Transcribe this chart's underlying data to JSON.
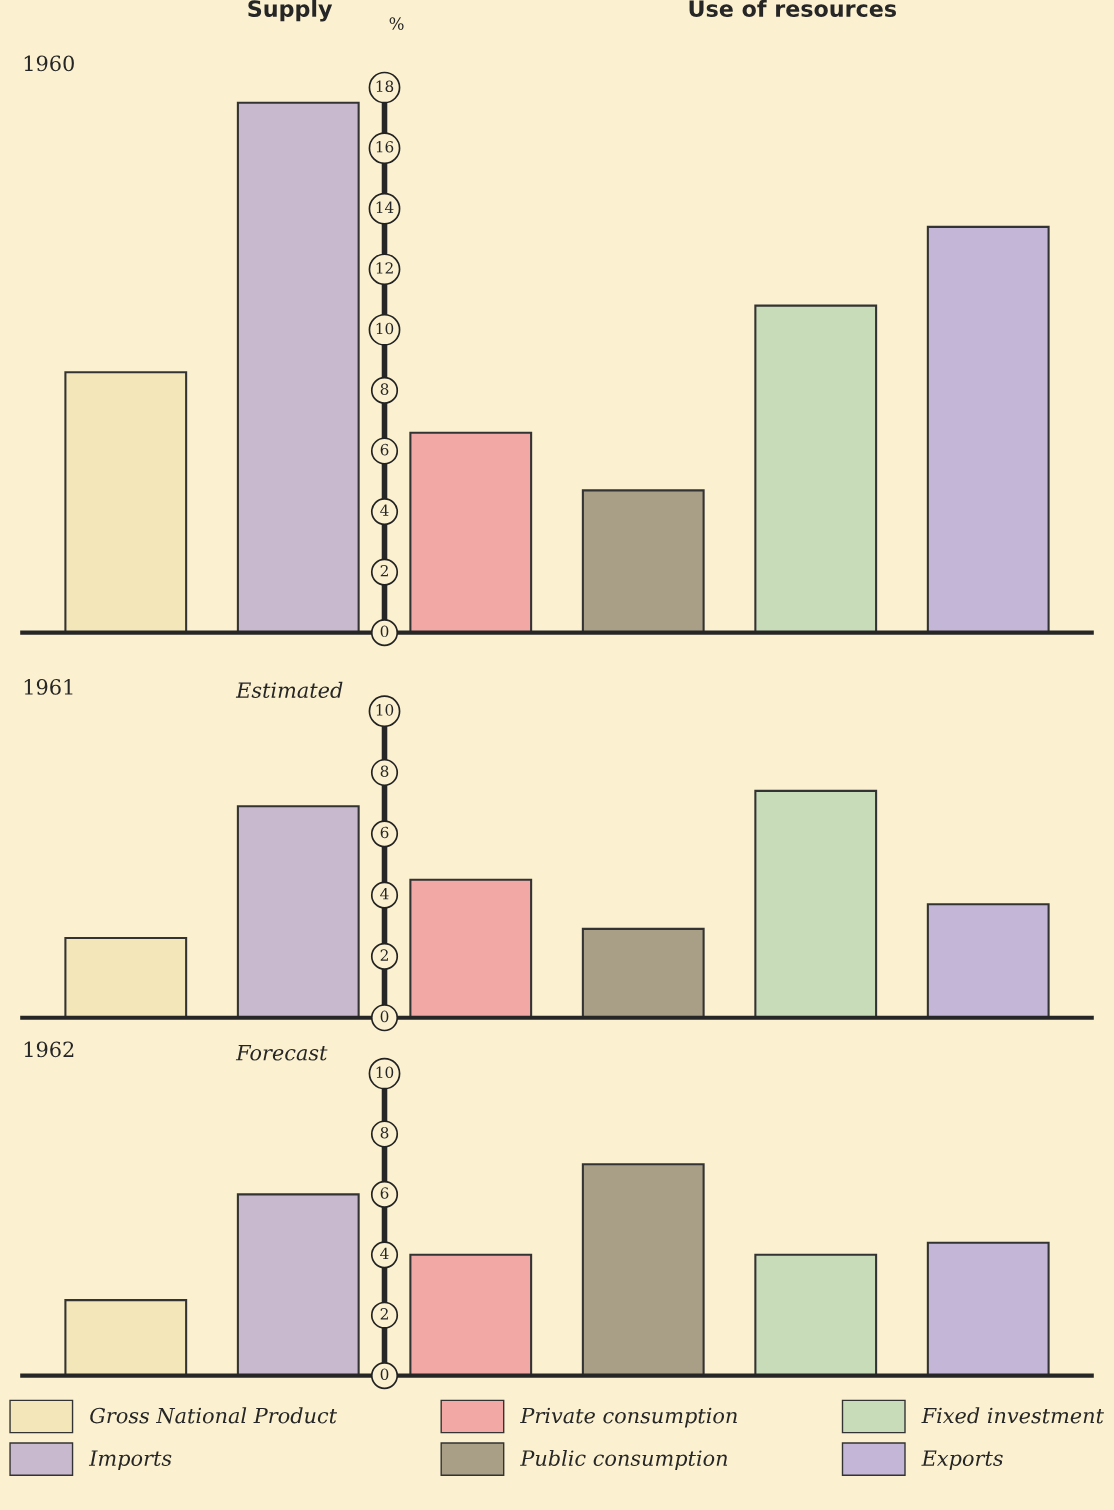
{
  "chart_data": [
    {
      "type": "bar",
      "title": "1960",
      "ylabel": "%",
      "annotations": [
        "Supply",
        "Use of resources"
      ],
      "categories": [
        null,
        null,
        null,
        null,
        null,
        null
      ],
      "ylim": [
        0,
        18
      ],
      "yticks": [
        0,
        2,
        4,
        6,
        8,
        10,
        12,
        14,
        16,
        18
      ],
      "grid": false,
      "legend": false,
      "series": [
        {
          "color": "#f3e6b8",
          "values": [
            8.6,
            null,
            null,
            null,
            null,
            null
          ]
        },
        {
          "color": "#c9b9cf",
          "values": [
            null,
            17.5,
            null,
            null,
            null,
            null
          ]
        },
        {
          "color": "#f2a9a6",
          "values": [
            null,
            null,
            6.6,
            null,
            null,
            null
          ]
        },
        {
          "color": "#a99e86",
          "values": [
            null,
            null,
            null,
            4.7,
            null,
            null
          ]
        },
        {
          "color": "#c9dcb9",
          "values": [
            null,
            null,
            null,
            null,
            10.8,
            null
          ]
        },
        {
          "color": "#c3b6d6",
          "values": [
            null,
            null,
            null,
            null,
            null,
            13.4
          ]
        }
      ]
    },
    {
      "type": "bar",
      "title": "1961",
      "subtitle": "Estimated",
      "categories": [
        null,
        null,
        null,
        null,
        null,
        null
      ],
      "ylim": [
        0,
        10
      ],
      "yticks": [
        0,
        2,
        4,
        6,
        8,
        10
      ],
      "grid": false,
      "legend": false,
      "series": [
        {
          "color": "#f3e6b8",
          "values": [
            2.6,
            null,
            null,
            null,
            null,
            null
          ]
        },
        {
          "color": "#c9b9cf",
          "values": [
            null,
            6.9,
            null,
            null,
            null,
            null
          ]
        },
        {
          "color": "#f2a9a6",
          "values": [
            null,
            null,
            4.5,
            null,
            null,
            null
          ]
        },
        {
          "color": "#a99e86",
          "values": [
            null,
            null,
            null,
            2.9,
            null,
            null
          ]
        },
        {
          "color": "#c9dcb9",
          "values": [
            null,
            null,
            null,
            null,
            7.4,
            null
          ]
        },
        {
          "color": "#c3b6d6",
          "values": [
            null,
            null,
            null,
            null,
            null,
            3.7
          ]
        }
      ]
    },
    {
      "type": "bar",
      "title": "1962",
      "subtitle": "Forecast",
      "categories": [
        null,
        null,
        null,
        null,
        null,
        null
      ],
      "ylim": [
        0,
        10
      ],
      "yticks": [
        0,
        2,
        4,
        6,
        8,
        10
      ],
      "grid": false,
      "legend": "bottom",
      "series": [
        {
          "name": "Gross National Product",
          "color": "#f3e6b8",
          "values": [
            2.5,
            null,
            null,
            null,
            null,
            null
          ]
        },
        {
          "name": "Imports",
          "color": "#c9b9cf",
          "values": [
            null,
            6.0,
            null,
            null,
            null,
            null
          ]
        },
        {
          "name": "Private consumption",
          "color": "#f2a9a6",
          "values": [
            null,
            null,
            4.0,
            null,
            null,
            null
          ]
        },
        {
          "name": "Public consumption",
          "color": "#a99e86",
          "values": [
            null,
            null,
            null,
            7.0,
            null,
            null
          ]
        },
        {
          "name": "Fixed investment",
          "color": "#c9dcb9",
          "values": [
            null,
            null,
            null,
            null,
            4.0,
            null
          ]
        },
        {
          "name": "Exports",
          "color": "#c3b6d6",
          "values": [
            null,
            null,
            null,
            null,
            null,
            4.4
          ]
        }
      ]
    }
  ]
}
